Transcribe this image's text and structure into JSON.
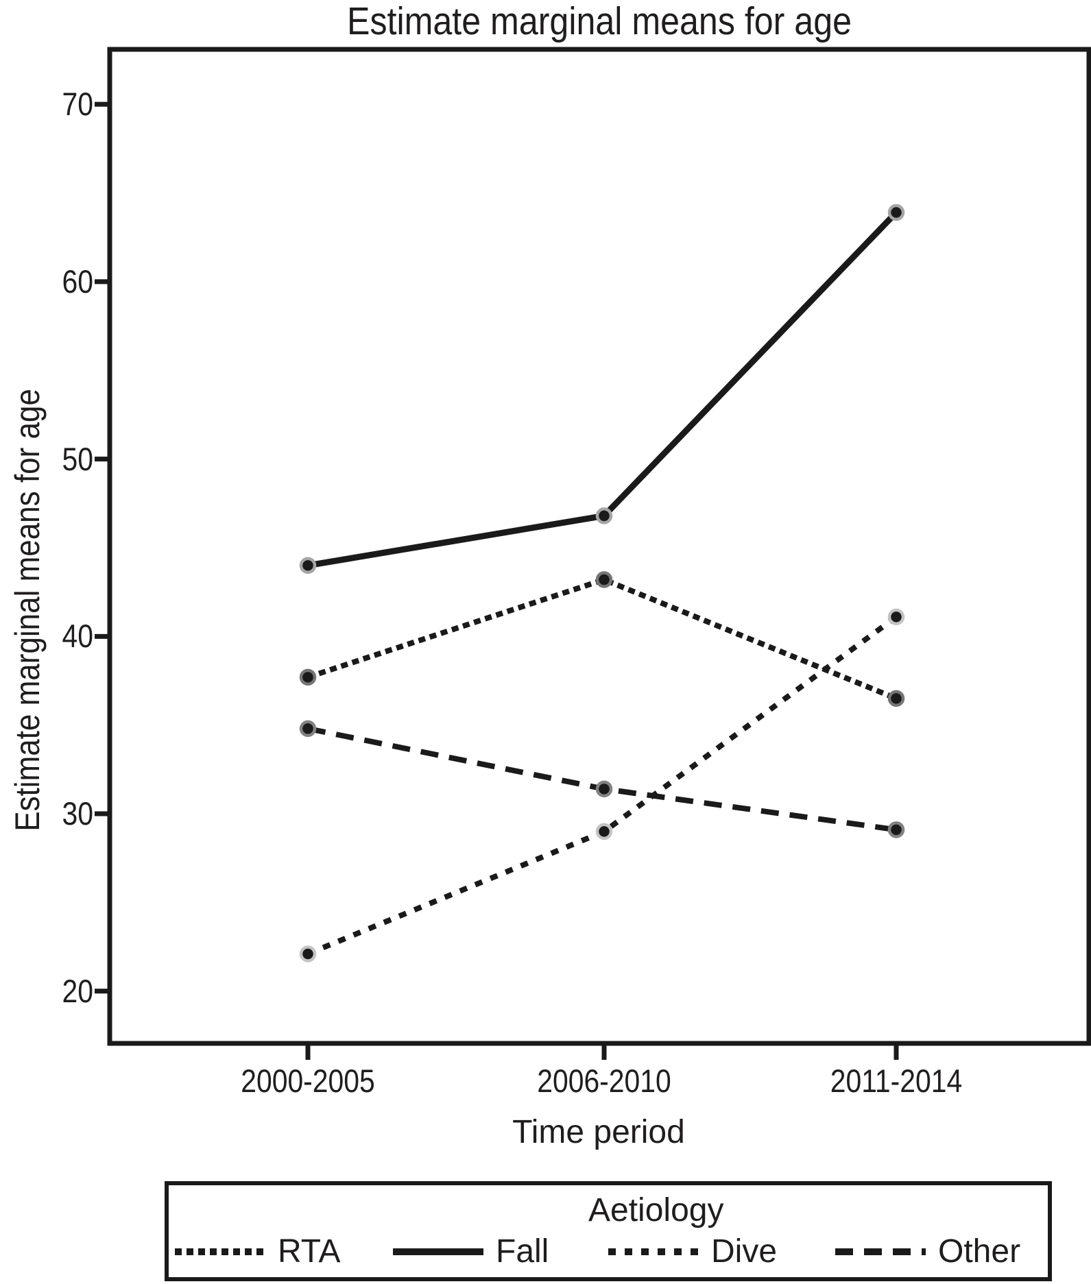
{
  "figure": {
    "title": "Estimate marginal means for age"
  },
  "chart_data": {
    "type": "line",
    "title": "Estimate marginal means for age",
    "xlabel": "Time period",
    "ylabel": "Estimate marginal means for age",
    "categories": [
      "2000-2005",
      "2006-2010",
      "2011-2014"
    ],
    "y_ticks": [
      70,
      60,
      50,
      40,
      30,
      20
    ],
    "ylim": [
      17,
      73
    ],
    "grid": false,
    "legend_title": "Aetiology",
    "legend_position": "bottom",
    "line_color": "#1a1a1a",
    "marker_fill": "#1a1a1a",
    "series": [
      {
        "name": "RTA",
        "style": "dense-dotted",
        "values": [
          37.7,
          43.2,
          36.5
        ],
        "marker_ring": "#757575"
      },
      {
        "name": "Fall",
        "style": "solid",
        "values": [
          44.0,
          46.8,
          63.9
        ],
        "marker_ring": "#a5a5a5"
      },
      {
        "name": "Dive",
        "style": "dotted",
        "values": [
          22.1,
          29.0,
          41.1
        ],
        "marker_ring": "#c4c4c4"
      },
      {
        "name": "Other",
        "style": "dashed",
        "values": [
          34.8,
          31.4,
          29.1
        ],
        "marker_ring": "#828282"
      }
    ]
  }
}
